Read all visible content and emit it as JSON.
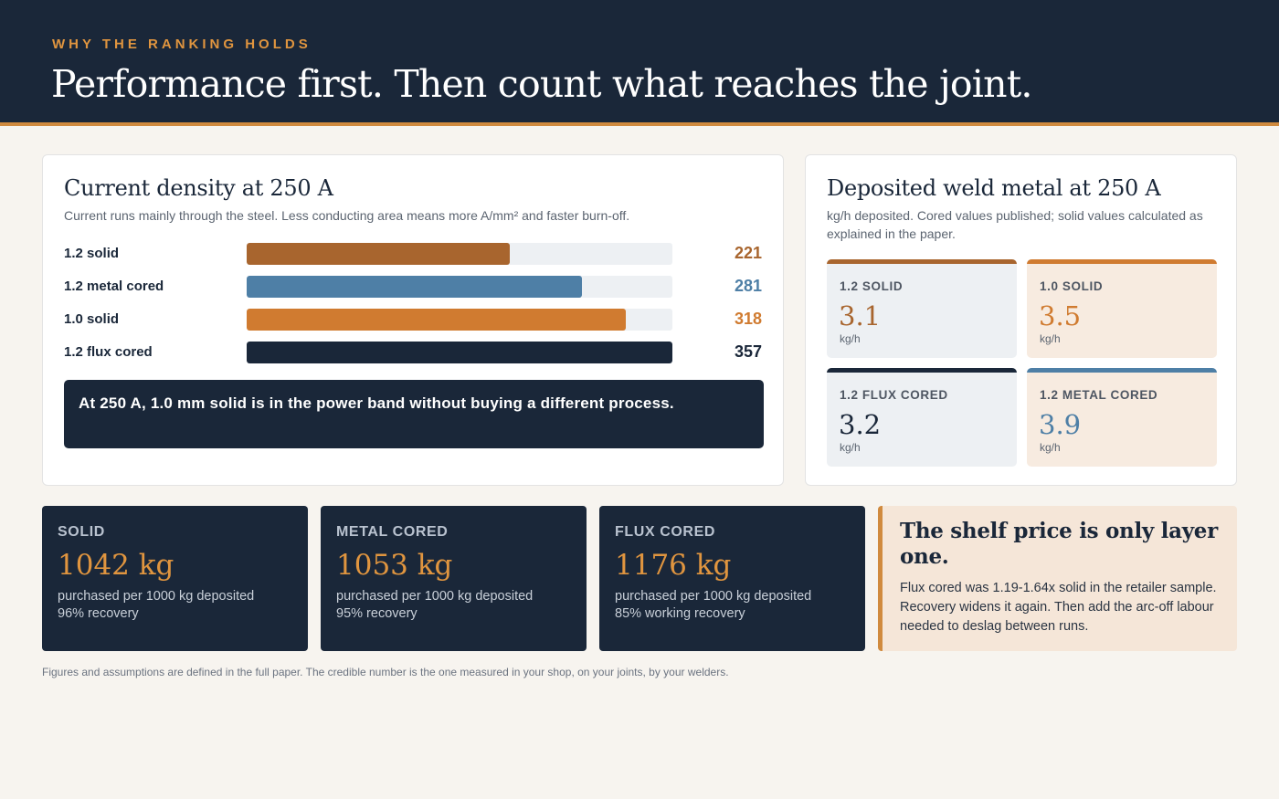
{
  "header": {
    "eyebrow": "WHY THE RANKING HOLDS",
    "title": "Performance first. Then count what reaches the joint."
  },
  "density_card": {
    "title": "Current density at 250 A",
    "subtitle": "Current runs mainly through the steel. Less conducting area means more A/mm² and faster burn-off.",
    "callout": "At 250 A, 1.0 mm solid is in the power band without buying a different process."
  },
  "chart_data": {
    "type": "bar",
    "title": "Current density at 250 A",
    "categories": [
      "1.2 solid",
      "1.2 metal cored",
      "1.0 solid",
      "1.2 flux cored"
    ],
    "values": [
      221,
      281,
      318,
      357
    ],
    "colors": [
      "#a8652e",
      "#4e7fa6",
      "#d07b30",
      "#1a2739"
    ],
    "xlim": [
      0,
      357
    ],
    "grid": false
  },
  "deposit_card": {
    "title": "Deposited weld metal at 250 A",
    "subtitle": "kg/h deposited. Cored values published; solid values calculated as explained in the paper.",
    "tiles": [
      {
        "label": "1.2 SOLID",
        "value": "3.1",
        "unit": "kg/h",
        "accent": "#a8652e",
        "bg": "#edf0f3"
      },
      {
        "label": "1.0 SOLID",
        "value": "3.5",
        "unit": "kg/h",
        "accent": "#d07b30",
        "bg": "#f7ebe0"
      },
      {
        "label": "1.2 FLUX CORED",
        "value": "3.2",
        "unit": "kg/h",
        "accent": "#1a2739",
        "bg": "#edf0f3"
      },
      {
        "label": "1.2 METAL CORED",
        "value": "3.9",
        "unit": "kg/h",
        "accent": "#4e7fa6",
        "bg": "#f7ebe0"
      }
    ]
  },
  "stats": [
    {
      "label": "SOLID",
      "value": "1042 kg",
      "line1": "purchased per 1000 kg deposited",
      "line2": "96% recovery"
    },
    {
      "label": "METAL CORED",
      "value": "1053 kg",
      "line1": "purchased per 1000 kg deposited",
      "line2": "95% recovery"
    },
    {
      "label": "FLUX CORED",
      "value": "1176 kg",
      "line1": "purchased per 1000 kg deposited",
      "line2": "85% working recovery"
    }
  ],
  "note": {
    "title": "The shelf price is only layer one.",
    "body": "Flux cored was 1.19-1.64x solid in the retailer sample. Recovery widens it again. Then add the arc-off labour needed to deslag between runs."
  },
  "footer": "Figures and assumptions are defined in the full paper. The credible number is the one measured in your shop, on your joints, by your welders.",
  "colors": {
    "navy": "#1a2739",
    "accent_orange": "#e0953f",
    "background": "#f7f4ef"
  }
}
